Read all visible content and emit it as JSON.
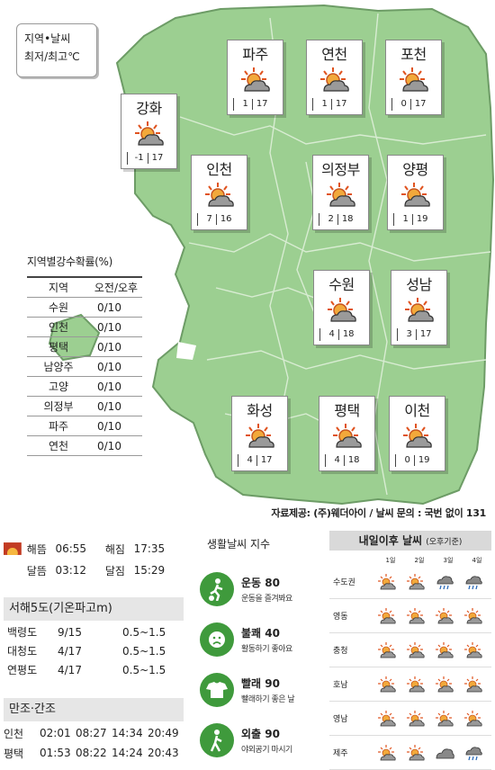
{
  "legend": {
    "line1": "지역•날씨",
    "line2": "최저/최고℃"
  },
  "map_cards": [
    {
      "name": "파주",
      "min": "1",
      "max": "17",
      "icon": "partly-cloudy-icon"
    },
    {
      "name": "연천",
      "min": "1",
      "max": "17",
      "icon": "partly-cloudy-icon"
    },
    {
      "name": "포천",
      "min": "0",
      "max": "17",
      "icon": "partly-cloudy-icon"
    },
    {
      "name": "강화",
      "min": "-1",
      "max": "17",
      "icon": "partly-cloudy-icon"
    },
    {
      "name": "인천",
      "min": "7",
      "max": "16",
      "icon": "partly-cloudy-icon"
    },
    {
      "name": "의정부",
      "min": "2",
      "max": "18",
      "icon": "partly-cloudy-icon"
    },
    {
      "name": "양평",
      "min": "1",
      "max": "19",
      "icon": "partly-cloudy-icon"
    },
    {
      "name": "수원",
      "min": "4",
      "max": "18",
      "icon": "partly-cloudy-icon"
    },
    {
      "name": "성남",
      "min": "3",
      "max": "17",
      "icon": "partly-cloudy-icon"
    },
    {
      "name": "화성",
      "min": "4",
      "max": "17",
      "icon": "partly-cloudy-icon"
    },
    {
      "name": "평택",
      "min": "4",
      "max": "18",
      "icon": "partly-cloudy-icon"
    },
    {
      "name": "이천",
      "min": "0",
      "max": "19",
      "icon": "partly-cloudy-icon"
    }
  ],
  "rain": {
    "title": "지역별강수확률(%)",
    "headers": [
      "지역",
      "오전/오후"
    ],
    "rows": [
      [
        "수원",
        "0/10"
      ],
      [
        "인천",
        "0/10"
      ],
      [
        "평택",
        "0/10"
      ],
      [
        "남양주",
        "0/10"
      ],
      [
        "고양",
        "0/10"
      ],
      [
        "의정부",
        "0/10"
      ],
      [
        "파주",
        "0/10"
      ],
      [
        "연천",
        "0/10"
      ]
    ]
  },
  "credit": "자료제공: (주)웨더아이 / 날씨 문의 : 국번 없이 131",
  "sun": {
    "row1": [
      "해뜸",
      "06:55",
      "해짐",
      "17:35"
    ],
    "row2": [
      "달뜸",
      "03:12",
      "달짐",
      "15:29"
    ]
  },
  "wave": {
    "title": "서해5도(기온파고m)",
    "rows": [
      [
        "백령도",
        "9/15",
        "0.5~1.5"
      ],
      [
        "대청도",
        "4/17",
        "0.5~1.5"
      ],
      [
        "연평도",
        "4/17",
        "0.5~1.5"
      ]
    ]
  },
  "tide": {
    "title": "만조·간조",
    "rows": [
      [
        "인천",
        "02:01",
        "08:27",
        "14:34",
        "20:49"
      ],
      [
        "평택",
        "01:53",
        "08:22",
        "14:24",
        "20:43"
      ]
    ]
  },
  "life": {
    "title": "생활날씨 지수",
    "items": [
      {
        "name": "운동 80",
        "desc": "운동을 즐겨봐요",
        "icon": "exercise-icon"
      },
      {
        "name": "불쾌 40",
        "desc": "활동하기 좋아요",
        "icon": "discomfort-icon"
      },
      {
        "name": "빨래 90",
        "desc": "빨래하기 좋은 날",
        "icon": "laundry-icon"
      },
      {
        "name": "외출 90",
        "desc": "야외공기 마시기",
        "icon": "outing-icon"
      }
    ]
  },
  "forecast": {
    "title": "내일이후 날씨",
    "subtitle": "(오후기준)",
    "days": [
      "1일",
      "2일",
      "3일",
      "4일"
    ],
    "rows": [
      {
        "region": "수도권",
        "icons": [
          "partly",
          "partly",
          "rain",
          "rain"
        ]
      },
      {
        "region": "영동",
        "icons": [
          "partly",
          "partly",
          "partly",
          "partly"
        ]
      },
      {
        "region": "충청",
        "icons": [
          "partly",
          "partly",
          "partly",
          "partly"
        ]
      },
      {
        "region": "호남",
        "icons": [
          "partly",
          "partly",
          "partly",
          "partly"
        ]
      },
      {
        "region": "영남",
        "icons": [
          "partly",
          "partly",
          "partly",
          "partly"
        ]
      },
      {
        "region": "제주",
        "icons": [
          "partly",
          "partly",
          "cloudy",
          "rain"
        ]
      }
    ]
  }
}
